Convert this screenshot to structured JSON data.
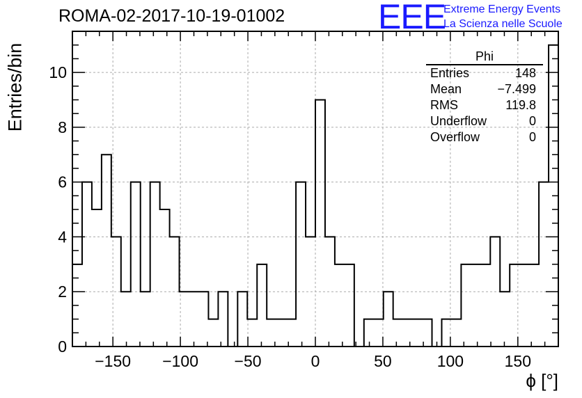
{
  "title": "ROMA-02-2017-10-19-01002",
  "logo": {
    "mark": "EEE",
    "line1": "Extreme Energy Events",
    "line2": "La Scienza nelle Scuole",
    "color": "#1a1aff"
  },
  "stats": {
    "name": "Phi",
    "rows": [
      {
        "label": "Entries",
        "value": "148"
      },
      {
        "label": "Mean",
        "value": "−7.499"
      },
      {
        "label": "RMS",
        "value": "119.8"
      },
      {
        "label": "Underflow",
        "value": "0"
      },
      {
        "label": "Overflow",
        "value": "0"
      }
    ]
  },
  "chart_data": {
    "type": "histogram",
    "title": "ROMA-02-2017-10-19-01002",
    "xlabel": "ϕ [°]",
    "ylabel": "Entries/bin",
    "xlim": [
      -180,
      180
    ],
    "ylim": [
      0,
      11.5
    ],
    "bin_width": 7.2,
    "x_ticks": [
      -150,
      -100,
      -50,
      0,
      50,
      100,
      150
    ],
    "y_ticks": [
      0,
      2,
      4,
      6,
      8,
      10
    ],
    "grid": true,
    "values": [
      3,
      6,
      5,
      7,
      4,
      2,
      6,
      2,
      6,
      5,
      4,
      2,
      2,
      2,
      1,
      2,
      0,
      2,
      1,
      3,
      1,
      1,
      1,
      6,
      4,
      9,
      4,
      3,
      3,
      0,
      1,
      1,
      2,
      1,
      1,
      1,
      1,
      0,
      1,
      1,
      3,
      3,
      3,
      4,
      2,
      3,
      3,
      3,
      6,
      11
    ]
  }
}
